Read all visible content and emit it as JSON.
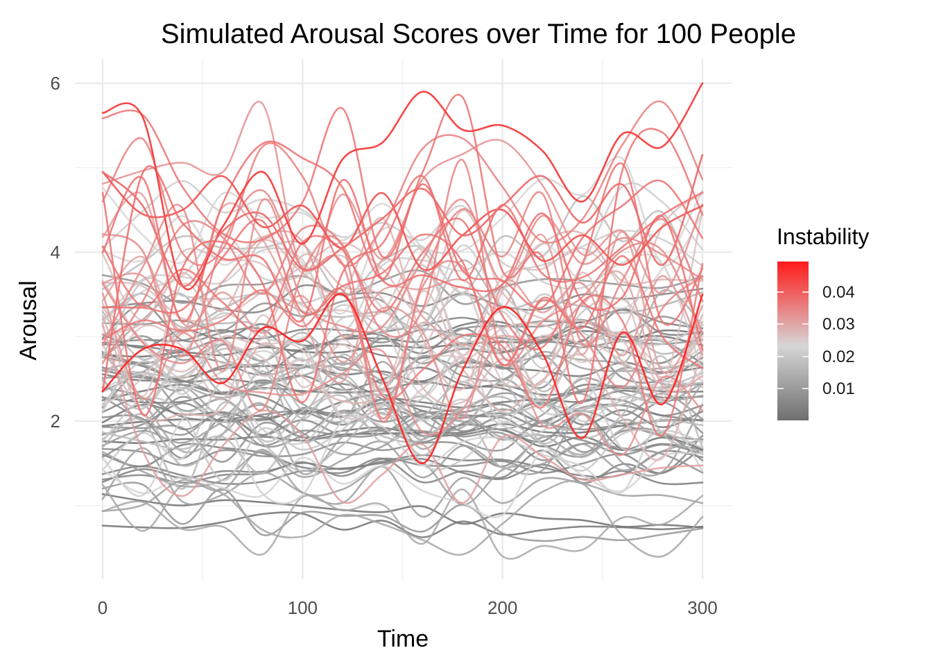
{
  "chart_data": {
    "type": "line",
    "title": "Simulated Arousal Scores over Time for 100 People",
    "xlabel": "Time",
    "ylabel": "Arousal",
    "xlim": [
      0,
      300
    ],
    "ylim": [
      0.3,
      6.1
    ],
    "x_ticks": [
      "0",
      "100",
      "200",
      "300"
    ],
    "y_ticks": [
      "2",
      "4",
      "6"
    ],
    "grid": true,
    "color_scale": {
      "title": "Instability",
      "labels": [
        "0.04",
        "0.03",
        "0.02",
        "0.01"
      ],
      "range": [
        0.0,
        0.047
      ],
      "low_color": "#6e6e6e",
      "mid_color": "#d6d6d6",
      "high_color": "#ff1a1a"
    },
    "legend_position": "right",
    "series_count": 100,
    "x": [
      0,
      20,
      40,
      60,
      80,
      100,
      120,
      140,
      160,
      180,
      200,
      220,
      240,
      260,
      280,
      300
    ],
    "highlighted_series": [
      {
        "instability": 0.045,
        "values": [
          2.35,
          2.85,
          2.85,
          2.45,
          3.1,
          2.95,
          3.5,
          2.5,
          1.5,
          2.6,
          3.35,
          2.8,
          1.8,
          3.05,
          2.2,
          3.5
        ]
      },
      {
        "instability": 0.042,
        "values": [
          5.65,
          5.6,
          3.6,
          4.3,
          4.95,
          4.1,
          5.1,
          5.3,
          5.9,
          5.45,
          5.5,
          5.2,
          4.6,
          5.4,
          5.25,
          6.0
        ]
      },
      {
        "instability": 0.038,
        "values": [
          4.95,
          4.45,
          4.5,
          4.9,
          4.3,
          4.55,
          4.05,
          4.7,
          3.8,
          4.2,
          4.5,
          3.9,
          4.2,
          3.85,
          4.3,
          4.55
        ]
      },
      {
        "instability": 0.035,
        "values": [
          4.95,
          4.55,
          3.6,
          4.25,
          4.45,
          3.8,
          4.05,
          4.4,
          4.75,
          4.2,
          4.55,
          4.9,
          4.35,
          4.8,
          3.85,
          5.15
        ]
      }
    ]
  }
}
